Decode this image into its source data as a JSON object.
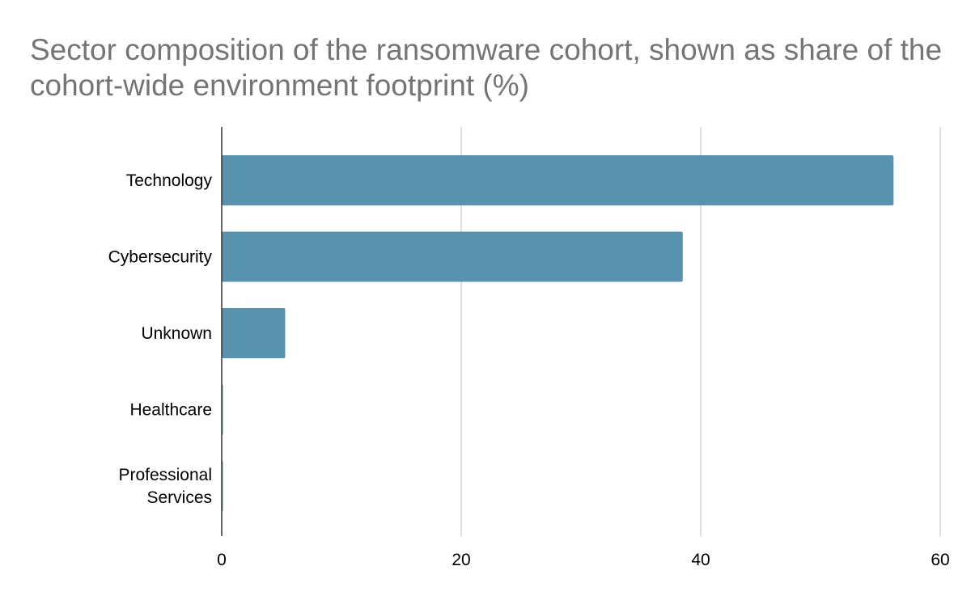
{
  "chart_data": {
    "type": "bar",
    "orientation": "horizontal",
    "title": "Sector composition of the ransomware cohort, shown as share of the cohort-wide environment footprint (%)",
    "categories": [
      [
        "Technology"
      ],
      [
        "Cybersecurity"
      ],
      [
        "Unknown"
      ],
      [
        "Healthcare"
      ],
      [
        "Professional",
        "Services"
      ]
    ],
    "values": [
      56.1,
      38.5,
      5.3,
      0.1,
      0.1
    ],
    "xlim": [
      0,
      60
    ],
    "xticks": [
      "0",
      "20",
      "40",
      "60"
    ],
    "xlabel": "",
    "ylabel": "",
    "grid": "vertical",
    "legend": "none",
    "colors": {
      "bar": "#5892AE",
      "grid": "#CCCCCC",
      "axis": "#333333",
      "title": "#757575",
      "text": "#000000"
    }
  }
}
